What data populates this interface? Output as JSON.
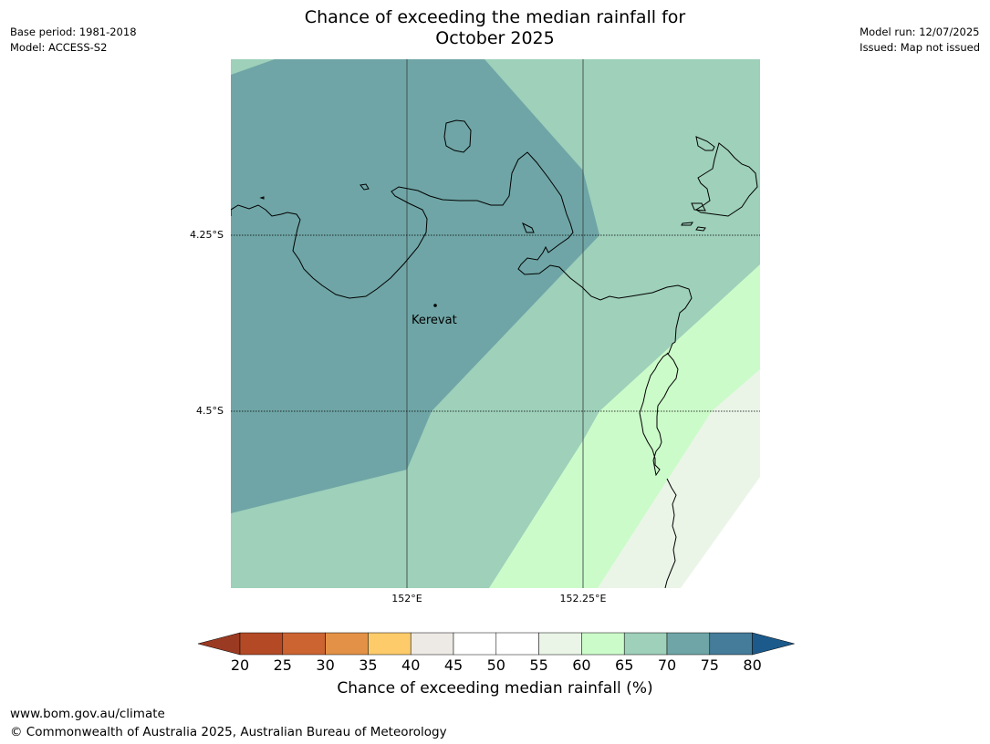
{
  "title_line1": "Chance of exceeding the median rainfall for",
  "title_line2": "October 2025",
  "meta_left": [
    "Base period: 1981-2018",
    "Model: ACCESS-S2"
  ],
  "meta_right": [
    "Model run: 12/07/2025",
    "Issued: Map not issued"
  ],
  "lat_labels": [
    "4.25°S",
    "4.5°S"
  ],
  "lon_labels": [
    "152°E",
    "152.25°E"
  ],
  "place_label": "Kerevat",
  "colorbar": {
    "ticks": [
      "20",
      "25",
      "30",
      "35",
      "40",
      "45",
      "50",
      "55",
      "60",
      "65",
      "70",
      "75",
      "80"
    ],
    "label": "Chance of exceeding median rainfall (%)",
    "colors": [
      "#9b3a22",
      "#b44a25",
      "#cc6432",
      "#e39146",
      "#fdcb6a",
      "#ede9e4",
      "#ffffff",
      "#ffffff",
      "#eaf5e8",
      "#ccfbca",
      "#9ed0ba",
      "#6fa5a6",
      "#447c9a",
      "#1c5a8c"
    ]
  },
  "footer": [
    "www.bom.gov.au/climate",
    "© Commonwealth of Australia 2025, Australian Bureau of Meteorology"
  ]
}
